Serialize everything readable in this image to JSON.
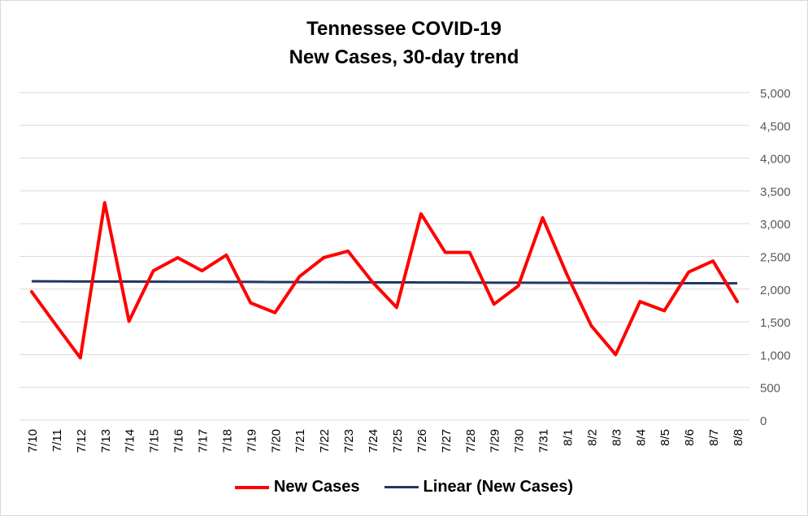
{
  "colors": {
    "new_cases": "#ff0000",
    "linear": "#1f3864",
    "grid": "#d9d9d9",
    "axis_text": "#595959"
  },
  "chart_data": {
    "type": "line",
    "title": "Tennessee COVID-19",
    "subtitle": "New Cases, 30-day trend",
    "xlabel": "",
    "ylabel": "",
    "y_axis_side": "right",
    "ylim": [
      0,
      5000
    ],
    "yticks": [
      "0",
      "500",
      "1,000",
      "1,500",
      "2,000",
      "2,500",
      "3,000",
      "3,500",
      "4,000",
      "4,500",
      "5,000"
    ],
    "ytick_values": [
      0,
      500,
      1000,
      1500,
      2000,
      2500,
      3000,
      3500,
      4000,
      4500,
      5000
    ],
    "grid": true,
    "legend_position": "bottom",
    "categories": [
      "7/10",
      "7/11",
      "7/12",
      "7/13",
      "7/14",
      "7/15",
      "7/16",
      "7/17",
      "7/18",
      "7/19",
      "7/20",
      "7/21",
      "7/22",
      "7/23",
      "7/24",
      "7/25",
      "7/26",
      "7/27",
      "7/28",
      "7/29",
      "7/30",
      "7/31",
      "8/1",
      "8/2",
      "8/3",
      "8/4",
      "8/5",
      "8/6",
      "8/7",
      "8/8"
    ],
    "series": [
      {
        "name": "New Cases",
        "values": [
          1960,
          1450,
          950,
          3320,
          1510,
          2280,
          2480,
          2280,
          2520,
          1790,
          1640,
          2190,
          2480,
          2580,
          2110,
          1720,
          3150,
          2560,
          2560,
          1770,
          2050,
          3090,
          2220,
          1440,
          1000,
          1810,
          1670,
          2260,
          2430,
          1810
        ]
      },
      {
        "name": "Linear (New Cases)",
        "type": "trendline",
        "values": [
          2120,
          2118,
          2117,
          2116,
          2115,
          2114,
          2113,
          2112,
          2111,
          2110,
          2108,
          2107,
          2106,
          2105,
          2104,
          2103,
          2102,
          2101,
          2100,
          2099,
          2098,
          2097,
          2096,
          2095,
          2094,
          2093,
          2092,
          2091,
          2090,
          2089
        ]
      }
    ]
  }
}
